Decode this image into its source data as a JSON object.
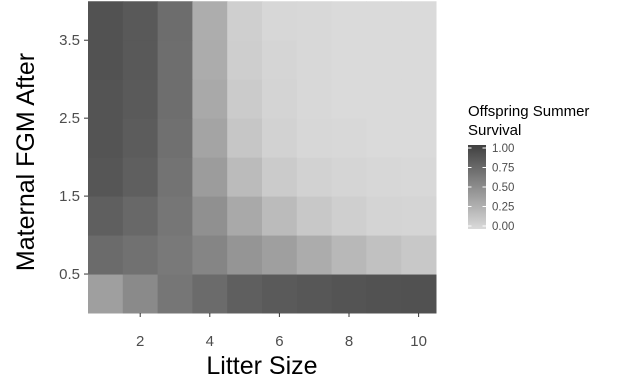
{
  "chart_data": {
    "type": "heatmap",
    "x": [
      1,
      2,
      3,
      4,
      5,
      6,
      7,
      8,
      9,
      10
    ],
    "y": [
      0.25,
      0.75,
      1.25,
      1.75,
      2.25,
      2.75,
      3.25,
      3.75
    ],
    "x_ticks": [
      2,
      4,
      6,
      8,
      10
    ],
    "x_tick_labels": [
      "2",
      "4",
      "6",
      "8",
      "10"
    ],
    "y_ticks": [
      0.5,
      1.5,
      2.5,
      3.5
    ],
    "y_tick_labels": [
      "0.5",
      "1.5",
      "2.5",
      "3.5"
    ],
    "xlabel": "Litter Size",
    "ylabel": "Maternal FGM After",
    "xlim": [
      0.5,
      10.5
    ],
    "ylim": [
      0,
      3.875
    ],
    "values": [
      [
        0.38,
        0.52,
        0.65,
        0.72,
        0.8,
        0.83,
        0.85,
        0.87,
        0.88,
        0.89
      ],
      [
        0.72,
        0.68,
        0.63,
        0.55,
        0.45,
        0.38,
        0.3,
        0.22,
        0.16,
        0.12
      ],
      [
        0.8,
        0.74,
        0.65,
        0.48,
        0.32,
        0.2,
        0.12,
        0.07,
        0.04,
        0.03
      ],
      [
        0.86,
        0.8,
        0.67,
        0.4,
        0.2,
        0.1,
        0.05,
        0.03,
        0.02,
        0.01
      ],
      [
        0.87,
        0.82,
        0.69,
        0.35,
        0.13,
        0.05,
        0.02,
        0.01,
        0.0,
        0.0
      ],
      [
        0.87,
        0.83,
        0.7,
        0.32,
        0.1,
        0.04,
        0.01,
        0.0,
        0.0,
        0.0
      ],
      [
        0.88,
        0.84,
        0.7,
        0.3,
        0.08,
        0.03,
        0.01,
        0.0,
        0.0,
        0.0
      ],
      [
        0.88,
        0.84,
        0.71,
        0.29,
        0.07,
        0.02,
        0.01,
        0.0,
        0.0,
        0.0
      ]
    ],
    "legend": {
      "title": [
        "Offspring Summer",
        "Survival"
      ],
      "breaks": [
        "1.00",
        "0.75",
        "0.50",
        "0.25",
        "0.00"
      ],
      "low_color": "#dadada",
      "high_color": "#404040",
      "placement": "right"
    },
    "grid": false
  }
}
